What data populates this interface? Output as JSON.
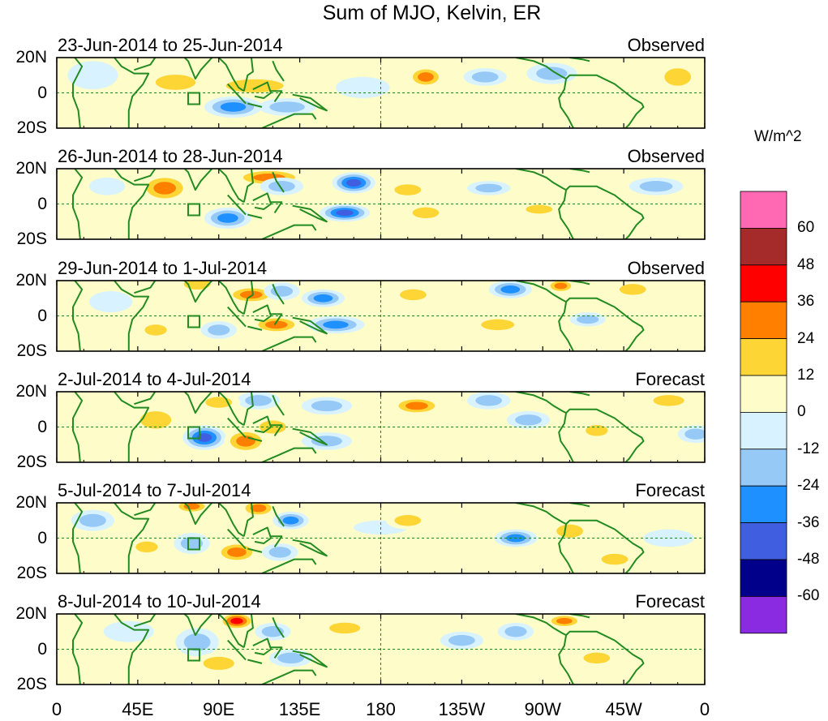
{
  "title": "Sum of MJO, Kelvin, ER",
  "units": "W/m^2",
  "panels": [
    {
      "date_range": "23-Jun-2014 to 25-Jun-2014",
      "kind": "Observed",
      "anomalies": [
        {
          "lon": 66,
          "lat": 6,
          "rlon": 18,
          "rlat": 7,
          "v": 18
        },
        {
          "lon": 110,
          "lat": 4,
          "rlon": 26,
          "rlat": 6,
          "v": 22
        },
        {
          "lon": 98,
          "lat": -8,
          "rlon": 16,
          "rlat": 6,
          "v": -28
        },
        {
          "lon": 128,
          "lat": -8,
          "rlon": 16,
          "rlat": 5,
          "v": -20
        },
        {
          "lon": 205,
          "lat": 9,
          "rlon": 10,
          "rlat": 6,
          "v": 26
        },
        {
          "lon": 238,
          "lat": 9,
          "rlon": 12,
          "rlat": 5,
          "v": -22
        },
        {
          "lon": 275,
          "lat": 11,
          "rlon": 14,
          "rlat": 6,
          "v": -14
        },
        {
          "lon": 300,
          "lat": 3,
          "rlon": 12,
          "rlat": 5,
          "v": 12
        },
        {
          "lon": 345,
          "lat": 9,
          "rlon": 12,
          "rlat": 8,
          "v": 16
        },
        {
          "lon": 20,
          "lat": 10,
          "rlon": 14,
          "rlat": 8,
          "v": -10
        },
        {
          "lon": 170,
          "lat": 3,
          "rlon": 15,
          "rlat": 6,
          "v": -12
        }
      ]
    },
    {
      "date_range": "26-Jun-2014 to 28-Jun-2014",
      "kind": "Observed",
      "anomalies": [
        {
          "lon": 60,
          "lat": 9,
          "rlon": 14,
          "rlat": 8,
          "v": 30
        },
        {
          "lon": 118,
          "lat": 15,
          "rlon": 20,
          "rlat": 5,
          "v": 26
        },
        {
          "lon": 165,
          "lat": 12,
          "rlon": 12,
          "rlat": 6,
          "v": -40
        },
        {
          "lon": 125,
          "lat": 10,
          "rlon": 12,
          "rlat": 5,
          "v": -18
        },
        {
          "lon": 95,
          "lat": -8,
          "rlon": 13,
          "rlat": 6,
          "v": -30
        },
        {
          "lon": 160,
          "lat": -5,
          "rlon": 14,
          "rlat": 5,
          "v": -38
        },
        {
          "lon": 195,
          "lat": 8,
          "rlon": 12,
          "rlat": 5,
          "v": 24
        },
        {
          "lon": 205,
          "lat": -5,
          "rlon": 12,
          "rlat": 5,
          "v": 18
        },
        {
          "lon": 240,
          "lat": 9,
          "rlon": 12,
          "rlat": 4,
          "v": -14
        },
        {
          "lon": 268,
          "lat": -3,
          "rlon": 12,
          "rlat": 4,
          "v": 14
        },
        {
          "lon": 333,
          "lat": 10,
          "rlon": 15,
          "rlat": 5,
          "v": -14
        },
        {
          "lon": 28,
          "lat": 10,
          "rlon": 10,
          "rlat": 5,
          "v": -10
        },
        {
          "lon": 340,
          "lat": -8,
          "rlon": 12,
          "rlat": 5,
          "v": 12
        }
      ]
    },
    {
      "date_range": "29-Jun-2014 to 1-Jul-2014",
      "kind": "Observed",
      "anomalies": [
        {
          "lon": 78,
          "lat": 18,
          "rlon": 12,
          "rlat": 5,
          "v": 14
        },
        {
          "lon": 108,
          "lat": 12,
          "rlon": 14,
          "rlat": 5,
          "v": 28
        },
        {
          "lon": 125,
          "lat": 14,
          "rlon": 10,
          "rlat": 5,
          "v": -20
        },
        {
          "lon": 148,
          "lat": 10,
          "rlon": 12,
          "rlat": 5,
          "v": -34
        },
        {
          "lon": 122,
          "lat": -5,
          "rlon": 14,
          "rlat": 5,
          "v": 26
        },
        {
          "lon": 155,
          "lat": -5,
          "rlon": 16,
          "rlat": 5,
          "v": -30
        },
        {
          "lon": 90,
          "lat": -8,
          "rlon": 10,
          "rlat": 5,
          "v": -18
        },
        {
          "lon": 55,
          "lat": -8,
          "rlon": 10,
          "rlat": 5,
          "v": 14
        },
        {
          "lon": 30,
          "lat": 8,
          "rlon": 12,
          "rlat": 6,
          "v": -10
        },
        {
          "lon": 198,
          "lat": 12,
          "rlon": 12,
          "rlat": 5,
          "v": 24
        },
        {
          "lon": 252,
          "lat": 15,
          "rlon": 12,
          "rlat": 5,
          "v": -30
        },
        {
          "lon": 280,
          "lat": 17,
          "rlon": 8,
          "rlat": 4,
          "v": 30
        },
        {
          "lon": 320,
          "lat": 15,
          "rlon": 12,
          "rlat": 5,
          "v": 14
        },
        {
          "lon": 295,
          "lat": -2,
          "rlon": 10,
          "rlat": 4,
          "v": -20
        },
        {
          "lon": 245,
          "lat": -5,
          "rlon": 15,
          "rlat": 5,
          "v": 14
        }
      ]
    },
    {
      "date_range": "2-Jul-2014 to 4-Jul-2014",
      "kind": "Forecast",
      "anomalies": [
        {
          "lon": 82,
          "lat": -6,
          "rlon": 12,
          "rlat": 7,
          "v": -38
        },
        {
          "lon": 105,
          "lat": -8,
          "rlon": 12,
          "rlat": 7,
          "v": 32
        },
        {
          "lon": 120,
          "lat": 0,
          "rlon": 12,
          "rlat": 6,
          "v": 20
        },
        {
          "lon": 112,
          "lat": 15,
          "rlon": 12,
          "rlat": 5,
          "v": -16
        },
        {
          "lon": 90,
          "lat": 14,
          "rlon": 12,
          "rlat": 5,
          "v": 16
        },
        {
          "lon": 55,
          "lat": 4,
          "rlon": 14,
          "rlat": 8,
          "v": 14
        },
        {
          "lon": 150,
          "lat": 12,
          "rlon": 14,
          "rlat": 5,
          "v": -18
        },
        {
          "lon": 200,
          "lat": 12,
          "rlon": 14,
          "rlat": 5,
          "v": 26
        },
        {
          "lon": 240,
          "lat": 15,
          "rlon": 12,
          "rlat": 5,
          "v": -22
        },
        {
          "lon": 262,
          "lat": 4,
          "rlon": 12,
          "rlat": 5,
          "v": -18
        },
        {
          "lon": 300,
          "lat": -2,
          "rlon": 10,
          "rlat": 5,
          "v": 18
        },
        {
          "lon": 340,
          "lat": 15,
          "rlon": 14,
          "rlat": 5,
          "v": 14
        },
        {
          "lon": 355,
          "lat": -4,
          "rlon": 10,
          "rlat": 5,
          "v": -20
        },
        {
          "lon": 150,
          "lat": -8,
          "rlon": 14,
          "rlat": 5,
          "v": -14
        }
      ]
    },
    {
      "date_range": "5-Jul-2014 to 7-Jul-2014",
      "kind": "Forecast",
      "anomalies": [
        {
          "lon": 75,
          "lat": 18,
          "rlon": 10,
          "rlat": 4,
          "v": 26
        },
        {
          "lon": 112,
          "lat": 17,
          "rlon": 10,
          "rlat": 5,
          "v": 34
        },
        {
          "lon": 130,
          "lat": 10,
          "rlon": 10,
          "rlat": 5,
          "v": -26
        },
        {
          "lon": 75,
          "lat": -3,
          "rlon": 10,
          "rlat": 6,
          "v": -22
        },
        {
          "lon": 50,
          "lat": -5,
          "rlon": 10,
          "rlat": 5,
          "v": 24
        },
        {
          "lon": 100,
          "lat": -8,
          "rlon": 12,
          "rlat": 6,
          "v": 28
        },
        {
          "lon": 124,
          "lat": -8,
          "rlon": 10,
          "rlat": 5,
          "v": -18
        },
        {
          "lon": 180,
          "lat": 6,
          "rlon": 15,
          "rlat": 4,
          "v": -10
        },
        {
          "lon": 195,
          "lat": 10,
          "rlon": 12,
          "rlat": 5,
          "v": 14
        },
        {
          "lon": 255,
          "lat": 0,
          "rlon": 12,
          "rlat": 5,
          "v": -30
        },
        {
          "lon": 285,
          "lat": 4,
          "rlon": 12,
          "rlat": 6,
          "v": 24
        },
        {
          "lon": 310,
          "lat": -12,
          "rlon": 12,
          "rlat": 5,
          "v": 14
        },
        {
          "lon": 20,
          "lat": 10,
          "rlon": 12,
          "rlat": 6,
          "v": -16
        },
        {
          "lon": 340,
          "lat": 0,
          "rlon": 14,
          "rlat": 5,
          "v": -12
        }
      ]
    },
    {
      "date_range": "8-Jul-2014 to 10-Jul-2014",
      "kind": "Forecast",
      "anomalies": [
        {
          "lon": 100,
          "lat": 16,
          "rlon": 10,
          "rlat": 5,
          "v": 40
        },
        {
          "lon": 78,
          "lat": 4,
          "rlon": 12,
          "rlat": 8,
          "v": -20
        },
        {
          "lon": 120,
          "lat": 10,
          "rlon": 10,
          "rlat": 5,
          "v": -16
        },
        {
          "lon": 90,
          "lat": -8,
          "rlon": 14,
          "rlat": 6,
          "v": 16
        },
        {
          "lon": 130,
          "lat": -5,
          "rlon": 12,
          "rlat": 5,
          "v": -14
        },
        {
          "lon": 160,
          "lat": 12,
          "rlon": 14,
          "rlat": 5,
          "v": 14
        },
        {
          "lon": 225,
          "lat": 5,
          "rlon": 12,
          "rlat": 5,
          "v": -24
        },
        {
          "lon": 255,
          "lat": 10,
          "rlon": 10,
          "rlat": 5,
          "v": -16
        },
        {
          "lon": 282,
          "lat": 16,
          "rlon": 10,
          "rlat": 4,
          "v": 30
        },
        {
          "lon": 300,
          "lat": -5,
          "rlon": 12,
          "rlat": 5,
          "v": 14
        },
        {
          "lon": 40,
          "lat": 10,
          "rlon": 14,
          "rlat": 6,
          "v": -10
        },
        {
          "lon": 190,
          "lat": -6,
          "rlon": 12,
          "rlat": 5,
          "v": 12
        }
      ]
    }
  ],
  "lat_labels": [
    "20N",
    "0",
    "20S"
  ],
  "lon_ticks": [
    {
      "lon": 0,
      "label": "0"
    },
    {
      "lon": 45,
      "label": "45E"
    },
    {
      "lon": 90,
      "label": "90E"
    },
    {
      "lon": 135,
      "label": "135E"
    },
    {
      "lon": 180,
      "label": "180"
    },
    {
      "lon": 225,
      "label": "135W"
    },
    {
      "lon": 270,
      "label": "90W"
    },
    {
      "lon": 315,
      "label": "45W"
    },
    {
      "lon": 360,
      "label": "0"
    }
  ],
  "colorbar": {
    "colors": [
      "#8a2be2",
      "#00008b",
      "#3f5fe0",
      "#1e90ff",
      "#97c9f7",
      "#d8f3ff",
      "#fefcc8",
      "#fdd535",
      "#ff7f00",
      "#ff0000",
      "#a52a2a",
      "#ff69b4"
    ],
    "boundaries": [
      -72,
      -60,
      -48,
      -36,
      -24,
      -12,
      0,
      12,
      24,
      36,
      48,
      60,
      72
    ],
    "labels": [
      "-60",
      "-48",
      "-36",
      "-24",
      "-12",
      "0",
      "12",
      "24",
      "36",
      "48",
      "60"
    ]
  },
  "coast_color": "#228b22",
  "base_color": "#fefcc8"
}
